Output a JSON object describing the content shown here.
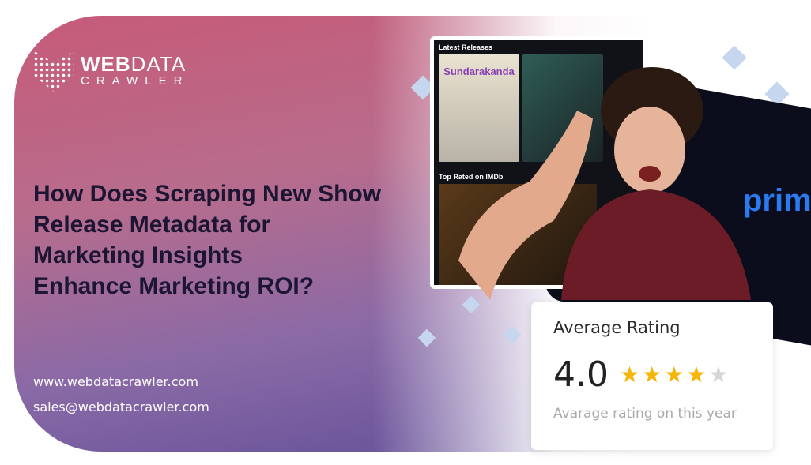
{
  "brand": {
    "name_bold": "WEB",
    "name_light": "DATA",
    "tagline": "CRAWLER"
  },
  "headline": [
    "How Does Scraping New Show",
    "Release Metadata for",
    "Marketing Insights",
    "Enhance Marketing ROI?"
  ],
  "contact": {
    "website": "www.webdatacrawler.com",
    "email": "sales@webdatacrawler.com"
  },
  "screenshot": {
    "section1": "Latest Releases",
    "section2": "Top Rated on IMDb",
    "poster1": "Sundarakanda"
  },
  "prime_logo": "prime",
  "rating_card": {
    "title": "Average Rating",
    "value": "4.0",
    "stars_filled": 4,
    "stars_total": 5,
    "subtitle": "Avarage rating on this year",
    "star_color": "#f5b50a",
    "star_empty_color": "#d6d6d6"
  },
  "colors": {
    "gradient_top": "#c65b78",
    "gradient_bottom": "#5b4a96",
    "headline": "#1c1533"
  }
}
